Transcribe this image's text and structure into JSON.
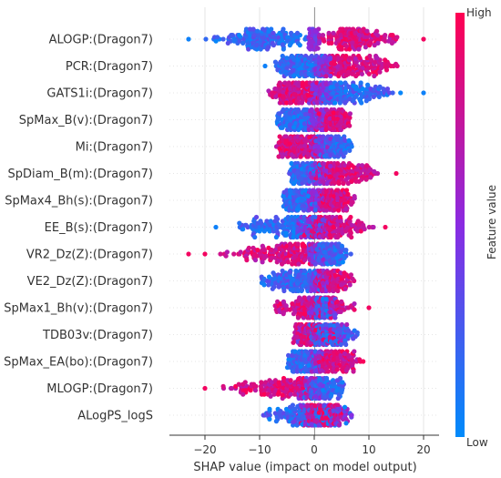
{
  "chart_data": {
    "type": "scatter",
    "subtype": "beeswarm",
    "title": "",
    "xlabel": "SHAP value (impact on model output)",
    "ylabel": "",
    "xlim": [
      -26,
      22
    ],
    "xticks": [
      -20,
      -10,
      0,
      10,
      20
    ],
    "xtick_labels": [
      "−20",
      "−10",
      "0",
      "10",
      "20"
    ],
    "colorbar": {
      "label": "Feature value",
      "high_label": "High",
      "low_label": "Low",
      "low_color": "#008bfb",
      "high_color": "#ff0052"
    },
    "features": [
      {
        "name": "ALOGP:(Dragon7)",
        "low_range": [
          -20,
          0
        ],
        "low_peak": -10,
        "high_range": [
          0,
          16
        ],
        "high_peak": 5,
        "outliers": [
          {
            "value": -23,
            "level": "low"
          },
          {
            "value": 20,
            "level": "high"
          }
        ]
      },
      {
        "name": "PCR:(Dragon7)",
        "low_range": [
          -8,
          2
        ],
        "low_peak": -3,
        "high_range": [
          1,
          17
        ],
        "high_peak": 4,
        "outliers": [
          {
            "value": -9,
            "level": "low"
          }
        ]
      },
      {
        "name": "GATS1i:(Dragon7)",
        "low_range": [
          0,
          16
        ],
        "low_peak": 3,
        "high_range": [
          -9,
          2
        ],
        "high_peak": -4,
        "outliers": [
          {
            "value": 20,
            "level": "low"
          }
        ]
      },
      {
        "name": "SpMax_B(v):(Dragon7)",
        "low_range": [
          -7,
          1
        ],
        "low_peak": -4,
        "high_range": [
          0,
          7
        ],
        "high_peak": 3,
        "outliers": []
      },
      {
        "name": "Mi:(Dragon7)",
        "low_range": [
          0,
          7
        ],
        "low_peak": 4,
        "high_range": [
          -8,
          2
        ],
        "high_peak": -3,
        "outliers": []
      },
      {
        "name": "SpDiam_B(m):(Dragon7)",
        "low_range": [
          -5,
          2
        ],
        "low_peak": -2,
        "high_range": [
          0,
          12
        ],
        "high_peak": 2,
        "outliers": [
          {
            "value": 15,
            "level": "high"
          }
        ]
      },
      {
        "name": "SpMax4_Bh(s):(Dragon7)",
        "low_range": [
          -6,
          1
        ],
        "low_peak": -4,
        "high_range": [
          0,
          8
        ],
        "high_peak": 2,
        "outliers": []
      },
      {
        "name": "EE_B(s):(Dragon7)",
        "low_range": [
          -16,
          2
        ],
        "low_peak": -1,
        "high_range": [
          -2,
          11
        ],
        "high_peak": 1,
        "outliers": [
          {
            "value": -18,
            "level": "low"
          },
          {
            "value": 13,
            "level": "high"
          }
        ]
      },
      {
        "name": "VR2_Dz(Z):(Dragon7)",
        "low_range": [
          0,
          7
        ],
        "low_peak": 1,
        "high_range": [
          -18,
          1
        ],
        "high_peak": -2,
        "outliers": [
          {
            "value": -23,
            "level": "high"
          },
          {
            "value": -20,
            "level": "high"
          }
        ]
      },
      {
        "name": "VE2_Dz(Z):(Dragon7)",
        "low_range": [
          -11,
          2
        ],
        "low_peak": -2,
        "high_range": [
          0,
          8
        ],
        "high_peak": 1,
        "outliers": []
      },
      {
        "name": "SpMax1_Bh(v):(Dragon7)",
        "low_range": [
          0,
          3
        ],
        "low_peak": 1,
        "high_range": [
          -8,
          8
        ],
        "high_peak": -1,
        "outliers": [
          {
            "value": 10,
            "level": "high"
          }
        ]
      },
      {
        "name": "TDB03v:(Dragon7)",
        "low_range": [
          -2,
          9
        ],
        "low_peak": 1,
        "high_range": [
          -4,
          5
        ],
        "high_peak": -2,
        "outliers": []
      },
      {
        "name": "SpMax_EA(bo):(Dragon7)",
        "low_range": [
          -5,
          1
        ],
        "low_peak": -3,
        "high_range": [
          0,
          9
        ],
        "high_peak": 2,
        "outliers": []
      },
      {
        "name": "MLOGP:(Dragon7)",
        "low_range": [
          -2,
          6
        ],
        "low_peak": 0,
        "high_range": [
          -18,
          1
        ],
        "high_peak": -1,
        "outliers": [
          {
            "value": -20,
            "level": "high"
          }
        ]
      },
      {
        "name": "ALogPS_logS",
        "low_range": [
          -10,
          7
        ],
        "low_peak": -1,
        "high_range": [
          -3,
          6
        ],
        "high_peak": 0,
        "outliers": []
      }
    ]
  }
}
